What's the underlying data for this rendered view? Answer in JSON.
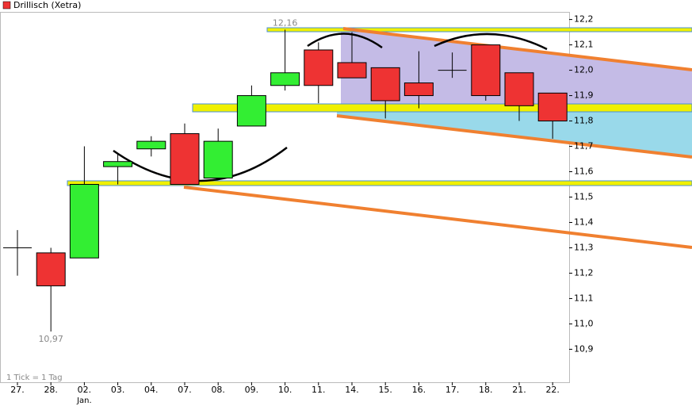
{
  "chart_data": {
    "type": "candlestick",
    "title": "Drillisch (Xetra)",
    "footnote": "1 Tick = 1 Tag",
    "categories": [
      "27.",
      "28.",
      "02.",
      "03.",
      "04.",
      "07.",
      "08.",
      "09.",
      "10.",
      "11.",
      "14.",
      "15.",
      "16.",
      "17.",
      "18.",
      "21.",
      "22."
    ],
    "month_label": "Jan.",
    "open": [
      11.3,
      11.28,
      11.26,
      11.62,
      11.69,
      11.75,
      11.575,
      11.78,
      11.94,
      12.08,
      12.03,
      12.01,
      11.95,
      12.0,
      12.1,
      11.99,
      11.91
    ],
    "high": [
      11.37,
      11.3,
      11.7,
      11.67,
      11.74,
      11.79,
      11.77,
      11.94,
      12.16,
      12.11,
      12.15,
      12.01,
      12.075,
      12.07,
      12.1,
      11.99,
      11.91
    ],
    "low": [
      11.19,
      10.97,
      11.26,
      11.55,
      11.66,
      11.55,
      11.575,
      11.78,
      11.92,
      11.87,
      11.97,
      11.81,
      11.85,
      11.97,
      11.88,
      11.8,
      11.73
    ],
    "close": [
      11.3,
      11.15,
      11.55,
      11.64,
      11.72,
      11.55,
      11.72,
      11.9,
      11.99,
      11.94,
      11.97,
      11.88,
      11.9,
      12.0,
      11.9,
      11.86,
      11.8
    ],
    "max_label": "12,16",
    "min_label": "10,97",
    "up_color": "#33ee33",
    "down_color": "#ee3333",
    "ylim": [
      10.77,
      12.23
    ],
    "yticks": [
      {
        "value": 10.9,
        "label": "10,9"
      },
      {
        "value": 11.0,
        "label": "11,0"
      },
      {
        "value": 11.1,
        "label": "11,1"
      },
      {
        "value": 11.2,
        "label": "11,2"
      },
      {
        "value": 11.3,
        "label": "11,3"
      },
      {
        "value": 11.4,
        "label": "11,4"
      },
      {
        "value": 11.5,
        "label": "11,5"
      },
      {
        "value": 11.6,
        "label": "11,6"
      },
      {
        "value": 11.7,
        "label": "11,7"
      },
      {
        "value": 11.8,
        "label": "11,8"
      },
      {
        "value": 11.9,
        "label": "11,9"
      },
      {
        "value": 12.0,
        "label": "12,0"
      },
      {
        "value": 12.1,
        "label": "12,1"
      },
      {
        "value": 12.2,
        "label": "12,2"
      }
    ]
  }
}
